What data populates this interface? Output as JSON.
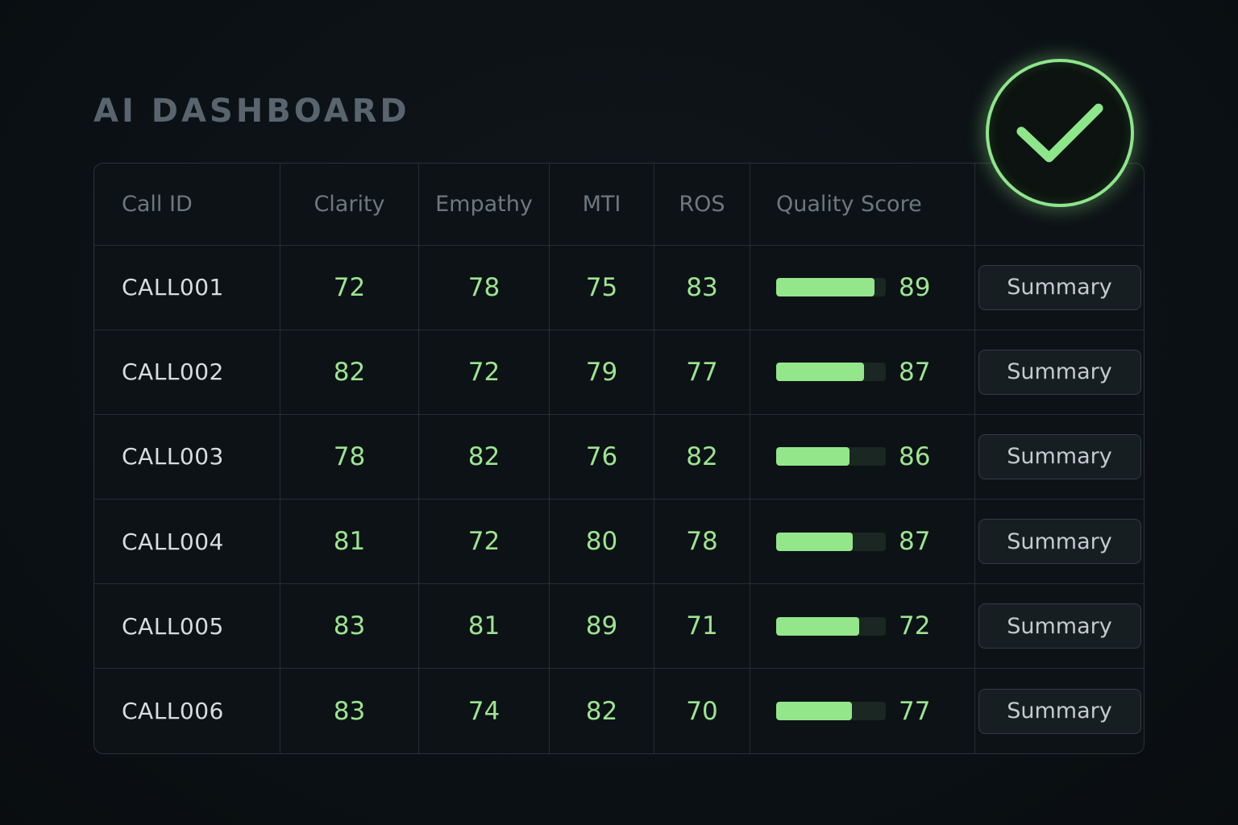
{
  "header": {
    "title": "AI DASHBOARD"
  },
  "table": {
    "columns": [
      "Call ID",
      "Clarity",
      "Empathy",
      "MTI",
      "ROS",
      "Quality Score",
      ""
    ],
    "rows": [
      {
        "id": "CALL001",
        "clarity": "72",
        "empathy": "78",
        "mti": "75",
        "ros": "83",
        "quality": "89",
        "quality_fill": 0.9,
        "action": "Summary"
      },
      {
        "id": "CALL002",
        "clarity": "82",
        "empathy": "72",
        "mti": "79",
        "ros": "77",
        "quality": "87",
        "quality_fill": 0.8,
        "action": "Summary"
      },
      {
        "id": "CALL003",
        "clarity": "78",
        "empathy": "82",
        "mti": "76",
        "ros": "82",
        "quality": "86",
        "quality_fill": 0.67,
        "action": "Summary"
      },
      {
        "id": "CALL004",
        "clarity": "81",
        "empathy": "72",
        "mti": "80",
        "ros": "78",
        "quality": "87",
        "quality_fill": 0.7,
        "action": "Summary"
      },
      {
        "id": "CALL005",
        "clarity": "83",
        "empathy": "81",
        "mti": "89",
        "ros": "71",
        "quality": "72",
        "quality_fill": 0.76,
        "action": "Summary"
      },
      {
        "id": "CALL006",
        "clarity": "83",
        "empathy": "74",
        "mti": "82",
        "ros": "70",
        "quality": "77",
        "quality_fill": 0.69,
        "action": "Summary"
      }
    ]
  },
  "badge": {
    "icon": "checkmark-icon"
  },
  "colors": {
    "accent": "#93e68a",
    "background": "#0b1014",
    "header_text": "#6d787f"
  }
}
